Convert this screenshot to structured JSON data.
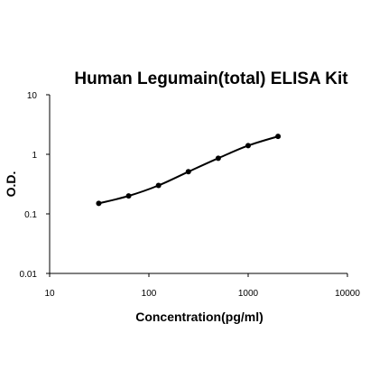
{
  "chart_data": {
    "type": "line",
    "title": "Human Legumain(total) ELISA Kit",
    "xlabel": "Concentration(pg/ml)",
    "ylabel": "O.D.",
    "xscale": "log",
    "yscale": "log",
    "xlim": [
      10,
      10000
    ],
    "ylim": [
      0.01,
      10
    ],
    "xticks": [
      "10",
      "100",
      "1000",
      "10000"
    ],
    "yticks": [
      "0.01",
      "0.1",
      "1",
      "10"
    ],
    "grid": false,
    "legend": "none",
    "series": [
      {
        "x": [
          31.25,
          62.5,
          125,
          250,
          500,
          1000,
          2000
        ],
        "y": [
          0.15,
          0.2,
          0.3,
          0.51,
          0.86,
          1.4,
          2.0
        ]
      }
    ],
    "colors": {
      "line": "#000000",
      "marker": "#000000",
      "axis": "#000000"
    }
  }
}
